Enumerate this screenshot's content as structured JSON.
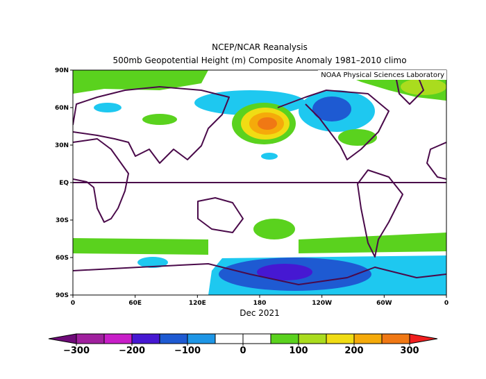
{
  "title": "NCEP/NCAR Reanalysis",
  "subtitle": "500mb Geopotential Height (m) Composite Anomaly 1981–2010 climo",
  "credit": "NOAA Physical Sciences Laboratory",
  "date": "Dec 2021",
  "lat_ticks": [
    "90N",
    "60N",
    "30N",
    "EQ",
    "30S",
    "60S",
    "90S"
  ],
  "lon_ticks": [
    "0",
    "60E",
    "120E",
    "180",
    "120W",
    "60W",
    "0"
  ],
  "colorbar": {
    "bounds": [
      -300,
      -250,
      -200,
      -150,
      -100,
      -50,
      0,
      50,
      100,
      150,
      200,
      250,
      300
    ],
    "colors": [
      "#6e0a78",
      "#a0209e",
      "#c81ec8",
      "#4618d2",
      "#1e5ad2",
      "#1e96e6",
      "#ffffff",
      "#ffffff",
      "#5ad21e",
      "#aadc1e",
      "#f0dc14",
      "#f5aa0a",
      "#f07814",
      "#f01e1e"
    ],
    "ticks": [
      {
        "value": -300,
        "label": "−300"
      },
      {
        "value": -200,
        "label": "−200"
      },
      {
        "value": -100,
        "label": "−100"
      },
      0,
      100,
      200,
      300
    ]
  }
}
